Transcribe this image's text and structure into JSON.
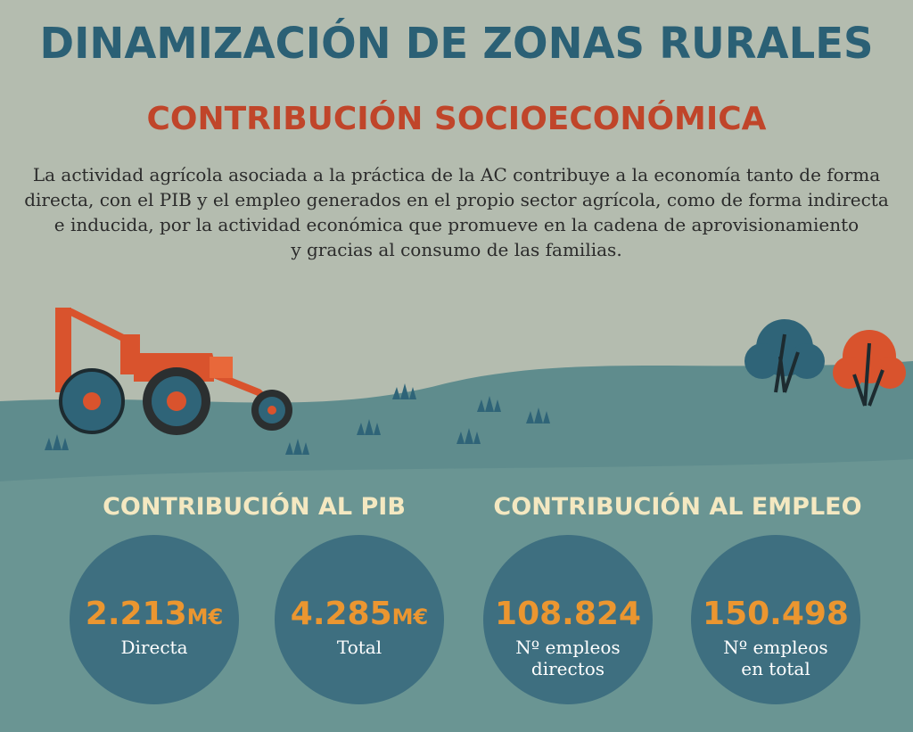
{
  "header": {
    "title": "DINAMIZACIÓN DE ZONAS RURALES",
    "subtitle": "CONTRIBUCIÓN SOCIOECONÓMICA",
    "intro_lines": [
      "La actividad agrícola asociada a la práctica de la AC contribuye a la economía tanto de forma",
      "directa, con el PIB y el empleo generados en el propio sector agrícola, como de forma indirecta",
      "e inducida, por la actividad económica que promueve en la cadena de aprovisionamiento",
      "y gracias al consumo de las familias."
    ]
  },
  "sections": [
    {
      "heading": "CONTRIBUCIÓN AL PIB",
      "stats": [
        {
          "value": "2.213",
          "unit": "M€",
          "label_lines": [
            "Directa"
          ]
        },
        {
          "value": "4.285",
          "unit": "M€",
          "label_lines": [
            "Total"
          ]
        }
      ]
    },
    {
      "heading": "CONTRIBUCIÓN AL EMPLEO",
      "stats": [
        {
          "value": "108.824",
          "label_lines": [
            "Nº empleos",
            "directos"
          ]
        },
        {
          "value": "150.498",
          "label_lines": [
            "Nº empleos",
            "en total"
          ]
        }
      ]
    }
  ]
}
